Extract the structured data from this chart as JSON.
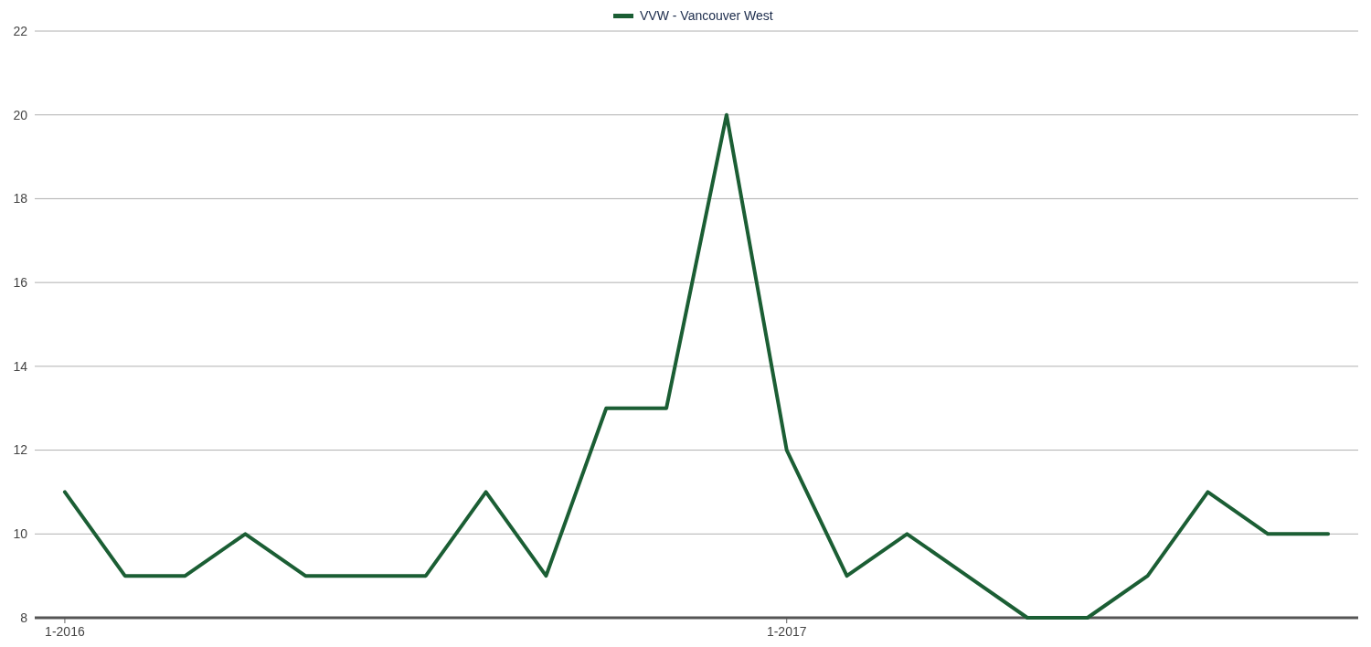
{
  "chart_data": {
    "type": "line",
    "categories": [
      "1-2016",
      null,
      null,
      null,
      null,
      null,
      null,
      null,
      null,
      null,
      null,
      null,
      "1-2017",
      null,
      null,
      null,
      null,
      null,
      null,
      null,
      null,
      null
    ],
    "series": [
      {
        "name": "VVW - Vancouver West",
        "color": "#1b5e34",
        "values": [
          11,
          9,
          9,
          10,
          9,
          9,
          9,
          11,
          9,
          13,
          13,
          20,
          12,
          9,
          10,
          9,
          8,
          8,
          9,
          11,
          10,
          10
        ]
      }
    ],
    "ylim": [
      8,
      22
    ],
    "yticks": [
      8,
      10,
      12,
      14,
      16,
      18,
      20,
      22
    ],
    "grid": "y",
    "legend": "top",
    "marker": "none",
    "line_style": "solid"
  }
}
